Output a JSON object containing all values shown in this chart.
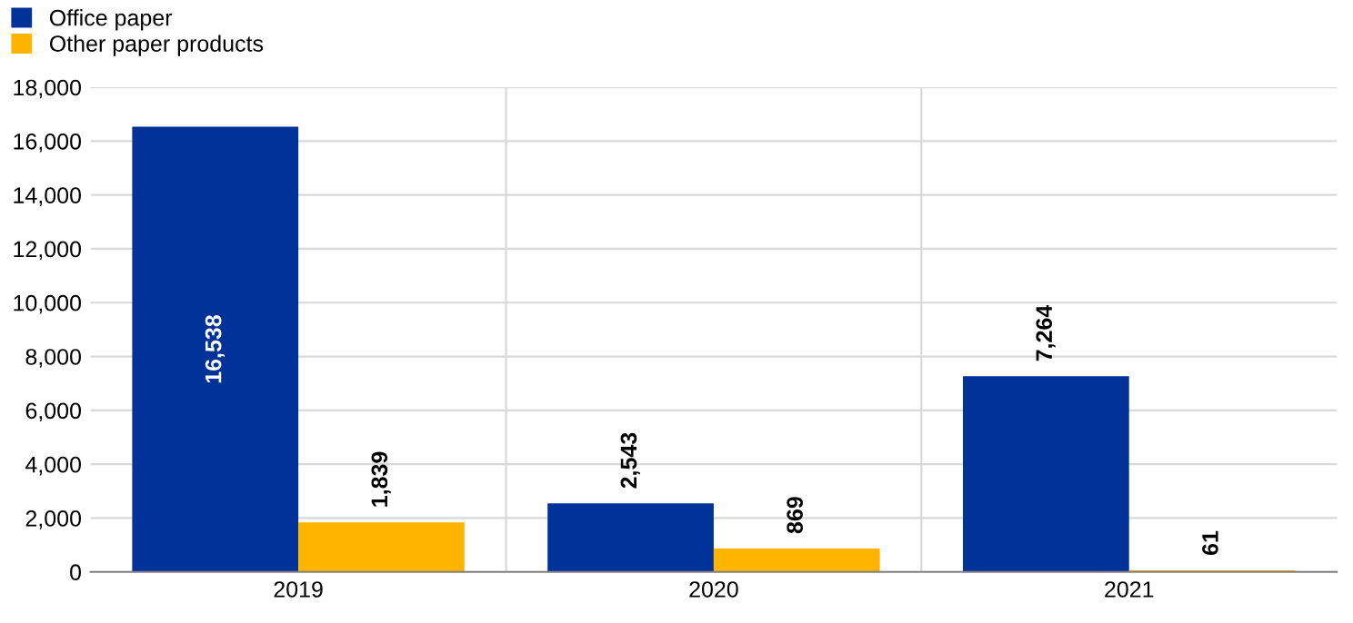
{
  "chart_data": {
    "type": "bar",
    "categories": [
      "2019",
      "2020",
      "2021"
    ],
    "series": [
      {
        "name": "Office paper",
        "color": "#003299",
        "values": [
          16538,
          2543,
          7264
        ],
        "value_labels": [
          "16,538",
          "2,543",
          "7,264"
        ]
      },
      {
        "name": "Other paper products",
        "color": "#ffb400",
        "values": [
          1839,
          869,
          61
        ],
        "value_labels": [
          "1,839",
          "869",
          "61"
        ]
      }
    ],
    "ylim": [
      0,
      18000
    ],
    "yticks": [
      {
        "value": 0,
        "label": "0"
      },
      {
        "value": 2000,
        "label": "2,000"
      },
      {
        "value": 4000,
        "label": "4,000"
      },
      {
        "value": 6000,
        "label": "6,000"
      },
      {
        "value": 8000,
        "label": "8,000"
      },
      {
        "value": 10000,
        "label": "10,000"
      },
      {
        "value": 12000,
        "label": "12,000"
      },
      {
        "value": 14000,
        "label": "14,000"
      },
      {
        "value": 16000,
        "label": "16,000"
      },
      {
        "value": 18000,
        "label": "18,000"
      }
    ],
    "grid": true,
    "legend": "top left"
  }
}
